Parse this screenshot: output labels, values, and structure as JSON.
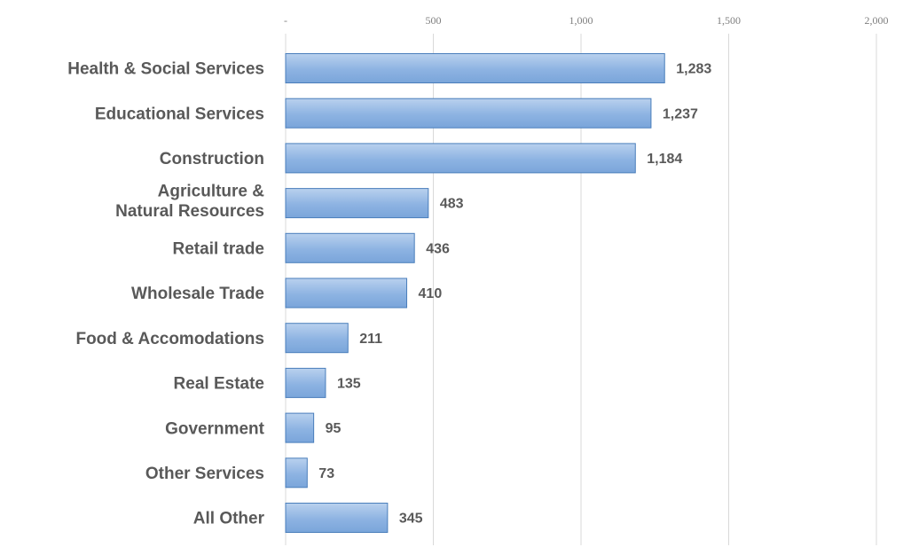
{
  "chart_data": {
    "type": "bar",
    "orientation": "horizontal",
    "title": "",
    "xlabel": "",
    "ylabel": "",
    "categories": [
      "Health & Social Services",
      "Educational Services",
      "Construction",
      "Agriculture & Natural Resources",
      "Retail trade",
      "Wholesale Trade",
      "Food & Accomodations",
      "Real Estate",
      "Government",
      "Other Services",
      "All Other"
    ],
    "values": [
      1283,
      1237,
      1184,
      483,
      436,
      410,
      211,
      135,
      95,
      73,
      345
    ],
    "value_labels": [
      "1,283",
      "1,237",
      "1,184",
      "483",
      "436",
      "410",
      "211",
      "135",
      "95",
      "73",
      "345"
    ],
    "xlim": [
      0,
      2000
    ],
    "ticks": [
      0,
      500,
      1000,
      1500,
      2000
    ],
    "tick_labels": [
      "-",
      "500",
      "1,000",
      "1,500",
      "2,000"
    ],
    "axis_position": "top",
    "grid": true,
    "legend": "none",
    "bar_color": "#8db3e2",
    "bar_edge_color": "#4a7ebb",
    "grid_color": "#d9d9d9",
    "label_color": "#595959"
  }
}
